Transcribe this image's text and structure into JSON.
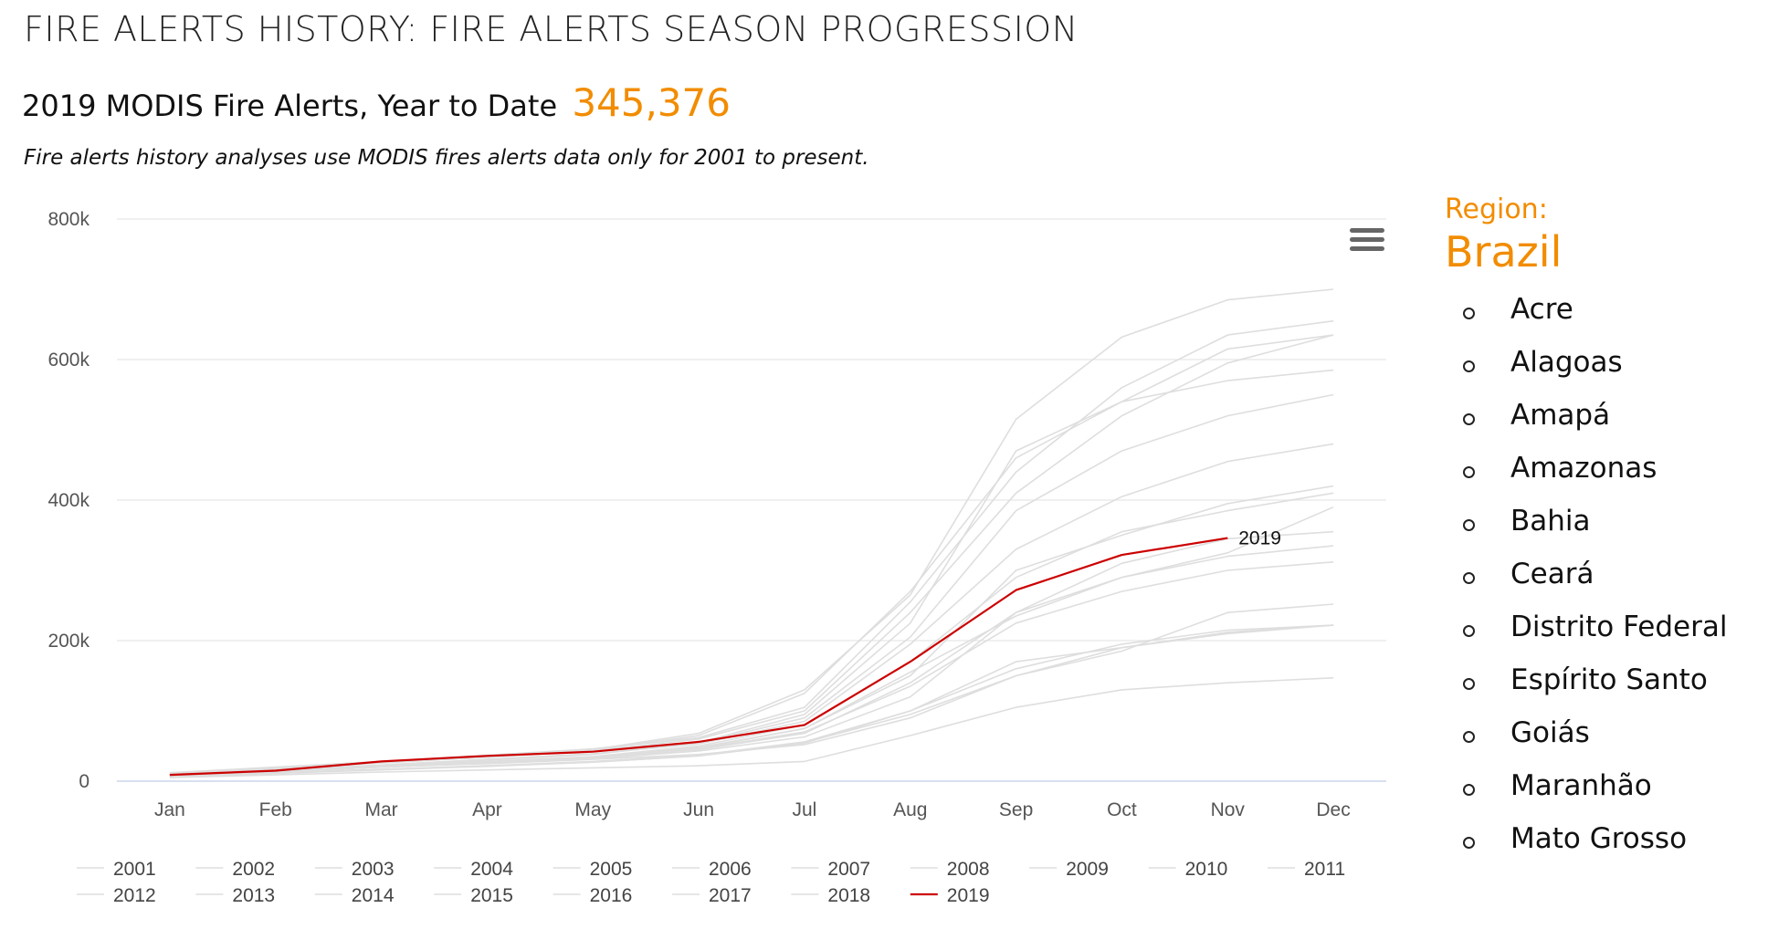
{
  "header": {
    "title": "FIRE ALERTS HISTORY: FIRE ALERTS SEASON PROGRESSION",
    "subtitle_prefix": "2019 MODIS Fire Alerts, Year to Date",
    "ytd_value": "345,376",
    "note": "Fire alerts history analyses use MODIS fires alerts data only for 2001 to present."
  },
  "region_panel": {
    "label": "Region:",
    "name": "Brazil",
    "items": [
      "Acre",
      "Alagoas",
      "Amapá",
      "Amazonas",
      "Bahia",
      "Ceará",
      "Distrito Federal",
      "Espírito Santo",
      "Goiás",
      "Maranhão",
      "Mato Grosso"
    ]
  },
  "icons": {
    "menu": "hamburger-menu-icon",
    "bullet": "circle-bullet-icon"
  },
  "colors": {
    "accent": "#f28c00",
    "highlight": "#cc0000",
    "history": "#dedede",
    "grid": "#e6e6e6",
    "baseline": "#ccd6eb"
  },
  "chart_data": {
    "type": "line",
    "title": "",
    "xlabel": "",
    "ylabel": "",
    "categories": [
      "Jan",
      "Feb",
      "Mar",
      "Apr",
      "May",
      "Jun",
      "Jul",
      "Aug",
      "Sep",
      "Oct",
      "Nov",
      "Dec"
    ],
    "ylim": [
      0,
      800000
    ],
    "yticks": [
      0,
      200000,
      400000,
      600000,
      800000
    ],
    "ytick_labels": [
      "0",
      "200k",
      "400k",
      "600k",
      "800k"
    ],
    "grid": true,
    "legend_position": "bottom",
    "series": [
      {
        "name": "2001",
        "values": [
          8000,
          14000,
          20000,
          25000,
          31000,
          38000,
          52000,
          90000,
          150000,
          190000,
          212000,
          222000
        ]
      },
      {
        "name": "2002",
        "values": [
          12000,
          20000,
          28000,
          37000,
          46000,
          62000,
          105000,
          255000,
          440000,
          560000,
          635000,
          655000
        ]
      },
      {
        "name": "2003",
        "values": [
          10000,
          18000,
          26000,
          34000,
          43000,
          60000,
          100000,
          240000,
          410000,
          520000,
          595000,
          635000
        ]
      },
      {
        "name": "2004",
        "values": [
          11000,
          19000,
          27000,
          35000,
          44000,
          65000,
          125000,
          270000,
          460000,
          540000,
          615000,
          635000
        ]
      },
      {
        "name": "2005",
        "values": [
          10000,
          18000,
          26000,
          35000,
          45000,
          68000,
          130000,
          265000,
          515000,
          632000,
          685000,
          700000
        ]
      },
      {
        "name": "2006",
        "values": [
          9000,
          16000,
          23000,
          31000,
          39000,
          53000,
          85000,
          195000,
          330000,
          405000,
          455000,
          480000
        ]
      },
      {
        "name": "2007",
        "values": [
          9000,
          15000,
          22000,
          30000,
          38000,
          55000,
          95000,
          225000,
          470000,
          540000,
          570000,
          585000
        ]
      },
      {
        "name": "2008",
        "values": [
          8000,
          14000,
          20000,
          26000,
          32000,
          43000,
          63000,
          120000,
          240000,
          310000,
          345000,
          355000
        ]
      },
      {
        "name": "2009",
        "values": [
          6000,
          11000,
          16000,
          21000,
          27000,
          36000,
          54000,
          100000,
          160000,
          195000,
          215000,
          222000
        ]
      },
      {
        "name": "2010",
        "values": [
          9000,
          16000,
          23000,
          31000,
          39000,
          54000,
          90000,
          205000,
          385000,
          470000,
          520000,
          550000
        ]
      },
      {
        "name": "2011",
        "values": [
          5000,
          9000,
          13000,
          16000,
          19000,
          22000,
          28000,
          65000,
          105000,
          130000,
          140000,
          147000
        ]
      },
      {
        "name": "2012",
        "values": [
          8000,
          14000,
          20000,
          26000,
          33000,
          45000,
          68000,
          140000,
          240000,
          290000,
          320000,
          335000
        ]
      },
      {
        "name": "2013",
        "values": [
          7000,
          12000,
          17000,
          22000,
          28000,
          37000,
          56000,
          100000,
          170000,
          190000,
          210000,
          222000
        ]
      },
      {
        "name": "2014",
        "values": [
          8000,
          14000,
          20000,
          26000,
          33000,
          46000,
          70000,
          135000,
          225000,
          270000,
          300000,
          312000
        ]
      },
      {
        "name": "2015",
        "values": [
          8000,
          14000,
          20000,
          26000,
          33000,
          47000,
          75000,
          150000,
          300000,
          350000,
          395000,
          420000
        ]
      },
      {
        "name": "2016",
        "values": [
          8000,
          14000,
          21000,
          27000,
          34000,
          48000,
          75000,
          155000,
          235000,
          290000,
          325000,
          390000
        ]
      },
      {
        "name": "2017",
        "values": [
          9000,
          15000,
          22000,
          28000,
          35000,
          50000,
          80000,
          170000,
          290000,
          355000,
          385000,
          410000
        ]
      },
      {
        "name": "2018",
        "values": [
          7000,
          12000,
          17000,
          22000,
          27000,
          36000,
          55000,
          95000,
          150000,
          185000,
          240000,
          252000
        ]
      },
      {
        "name": "2019",
        "values": [
          9000,
          15000,
          28000,
          36000,
          42000,
          56000,
          80000,
          170000,
          272000,
          322000,
          346000,
          null
        ]
      }
    ],
    "highlight_series": "2019",
    "annotation": "2019"
  }
}
